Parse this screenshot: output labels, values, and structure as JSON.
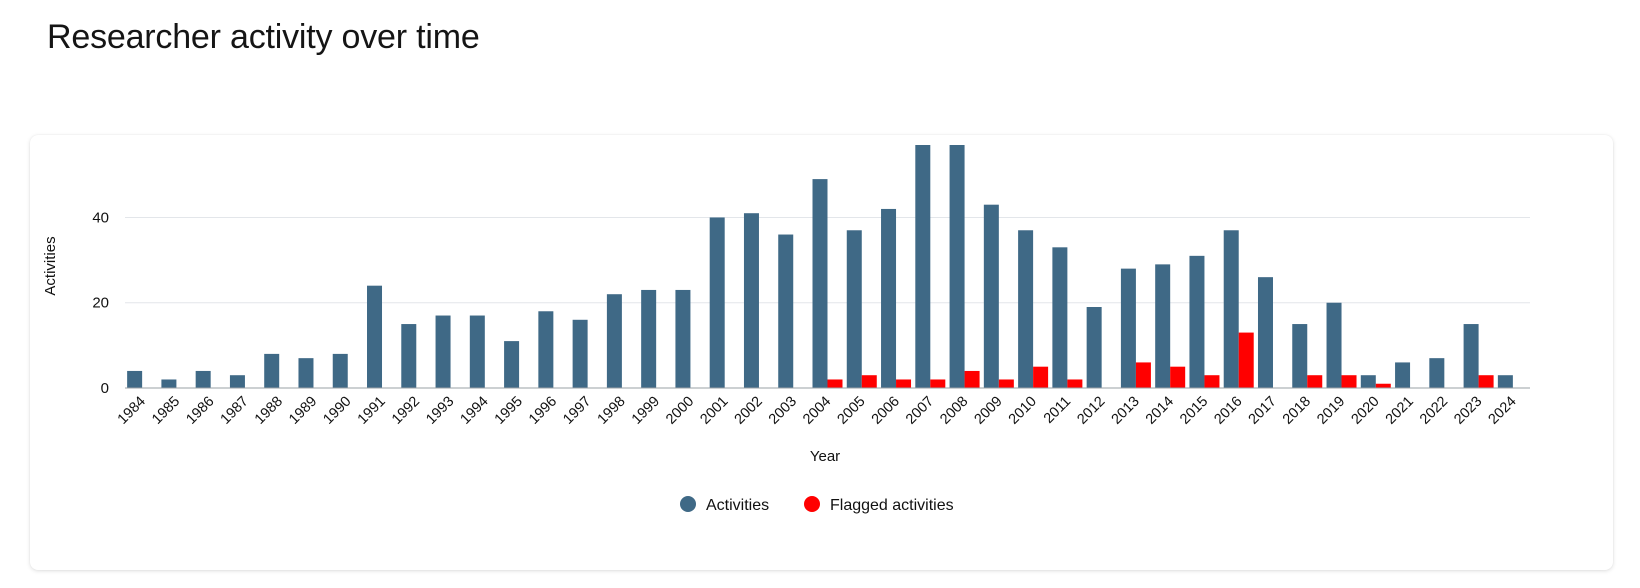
{
  "page": {
    "title": "Researcher activity over time"
  },
  "colors": {
    "activities": "#3f6986",
    "flagged": "#ff0000",
    "grid": "#e3e6ea",
    "axis": "#9aa0a6"
  },
  "chart_data": {
    "type": "bar",
    "xlabel": "Year",
    "ylabel": "Activities",
    "ylim": [
      0,
      57
    ],
    "yticks": [
      0,
      20,
      40
    ],
    "grid": true,
    "legend": "bottom-center",
    "categories": [
      "1984",
      "1985",
      "1986",
      "1987",
      "1988",
      "1989",
      "1990",
      "1991",
      "1992",
      "1993",
      "1994",
      "1995",
      "1996",
      "1997",
      "1998",
      "1999",
      "2000",
      "2001",
      "2002",
      "2003",
      "2004",
      "2005",
      "2006",
      "2007",
      "2008",
      "2009",
      "2010",
      "2011",
      "2012",
      "2013",
      "2014",
      "2015",
      "2016",
      "2017",
      "2018",
      "2019",
      "2020",
      "2021",
      "2022",
      "2023",
      "2024"
    ],
    "series": [
      {
        "name": "Activities",
        "color": "#3f6986",
        "values": [
          4,
          2,
          4,
          3,
          8,
          7,
          8,
          24,
          15,
          17,
          17,
          11,
          18,
          16,
          22,
          23,
          23,
          40,
          41,
          36,
          49,
          37,
          42,
          57,
          57,
          43,
          37,
          33,
          19,
          28,
          29,
          31,
          37,
          26,
          15,
          20,
          3,
          6,
          7,
          15,
          3
        ]
      },
      {
        "name": "Flagged activities",
        "color": "#ff0000",
        "values": [
          0,
          0,
          0,
          0,
          0,
          0,
          0,
          0,
          0,
          0,
          0,
          0,
          0,
          0,
          0,
          0,
          0,
          0,
          0,
          0,
          2,
          3,
          2,
          2,
          4,
          2,
          5,
          2,
          0,
          6,
          5,
          3,
          13,
          0,
          3,
          3,
          1,
          0,
          0,
          3,
          0
        ]
      }
    ]
  }
}
